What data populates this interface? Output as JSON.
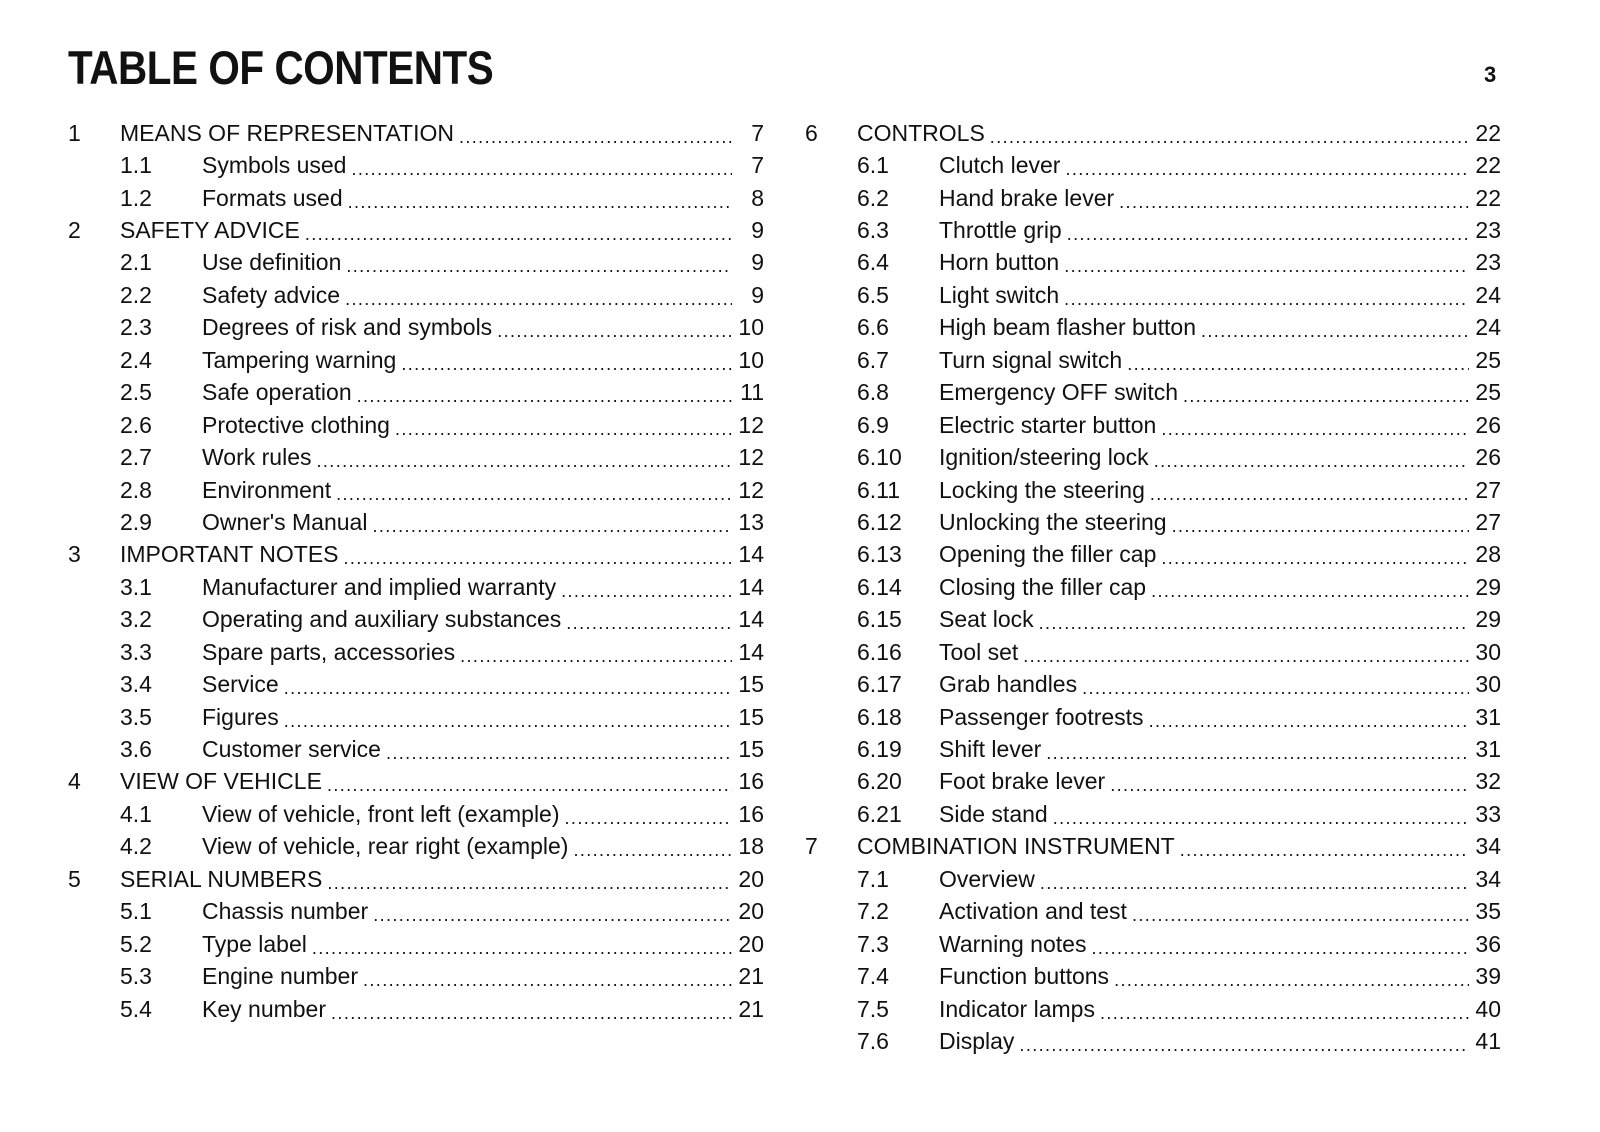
{
  "header": {
    "title": "TABLE OF CONTENTS",
    "page_number": "3"
  },
  "columns": [
    [
      {
        "num": "1",
        "label": "MEANS OF REPRESENTATION",
        "page": "7",
        "level": 1
      },
      {
        "num": "1.1",
        "label": "Symbols used",
        "page": "7",
        "level": 2
      },
      {
        "num": "1.2",
        "label": "Formats used",
        "page": "8",
        "level": 2
      },
      {
        "num": "2",
        "label": "SAFETY ADVICE",
        "page": "9",
        "level": 1
      },
      {
        "num": "2.1",
        "label": "Use definition",
        "page": "9",
        "level": 2
      },
      {
        "num": "2.2",
        "label": "Safety advice",
        "page": "9",
        "level": 2
      },
      {
        "num": "2.3",
        "label": "Degrees of risk and symbols",
        "page": "10",
        "level": 2
      },
      {
        "num": "2.4",
        "label": "Tampering warning",
        "page": "10",
        "level": 2
      },
      {
        "num": "2.5",
        "label": "Safe operation",
        "page": "11",
        "level": 2
      },
      {
        "num": "2.6",
        "label": "Protective clothing",
        "page": "12",
        "level": 2
      },
      {
        "num": "2.7",
        "label": "Work rules",
        "page": "12",
        "level": 2
      },
      {
        "num": "2.8",
        "label": "Environment",
        "page": "12",
        "level": 2
      },
      {
        "num": "2.9",
        "label": "Owner's Manual",
        "page": "13",
        "level": 2
      },
      {
        "num": "3",
        "label": "IMPORTANT NOTES",
        "page": "14",
        "level": 1
      },
      {
        "num": "3.1",
        "label": "Manufacturer and implied warranty",
        "page": "14",
        "level": 2
      },
      {
        "num": "3.2",
        "label": "Operating and auxiliary substances",
        "page": "14",
        "level": 2
      },
      {
        "num": "3.3",
        "label": "Spare parts, accessories",
        "page": "14",
        "level": 2
      },
      {
        "num": "3.4",
        "label": "Service",
        "page": "15",
        "level": 2
      },
      {
        "num": "3.5",
        "label": "Figures",
        "page": "15",
        "level": 2
      },
      {
        "num": "3.6",
        "label": "Customer service",
        "page": "15",
        "level": 2
      },
      {
        "num": "4",
        "label": "VIEW OF VEHICLE",
        "page": "16",
        "level": 1
      },
      {
        "num": "4.1",
        "label": "View of vehicle, front left (example)",
        "page": "16",
        "level": 2
      },
      {
        "num": "4.2",
        "label": "View of vehicle, rear right (example)",
        "page": "18",
        "level": 2
      },
      {
        "num": "5",
        "label": "SERIAL NUMBERS",
        "page": "20",
        "level": 1
      },
      {
        "num": "5.1",
        "label": "Chassis number",
        "page": "20",
        "level": 2
      },
      {
        "num": "5.2",
        "label": "Type label",
        "page": "20",
        "level": 2
      },
      {
        "num": "5.3",
        "label": "Engine number",
        "page": "21",
        "level": 2
      },
      {
        "num": "5.4",
        "label": "Key number",
        "page": "21",
        "level": 2
      }
    ],
    [
      {
        "num": "6",
        "label": "CONTROLS",
        "page": "22",
        "level": 1
      },
      {
        "num": "6.1",
        "label": "Clutch lever",
        "page": "22",
        "level": 2
      },
      {
        "num": "6.2",
        "label": "Hand brake lever",
        "page": "22",
        "level": 2
      },
      {
        "num": "6.3",
        "label": "Throttle grip",
        "page": "23",
        "level": 2
      },
      {
        "num": "6.4",
        "label": "Horn button",
        "page": "23",
        "level": 2
      },
      {
        "num": "6.5",
        "label": "Light switch",
        "page": "24",
        "level": 2
      },
      {
        "num": "6.6",
        "label": "High beam flasher button",
        "page": "24",
        "level": 2
      },
      {
        "num": "6.7",
        "label": "Turn signal switch",
        "page": "25",
        "level": 2
      },
      {
        "num": "6.8",
        "label": "Emergency OFF switch",
        "page": "25",
        "level": 2
      },
      {
        "num": "6.9",
        "label": "Electric starter button",
        "page": "26",
        "level": 2
      },
      {
        "num": "6.10",
        "label": "Ignition/steering lock",
        "page": "26",
        "level": 2
      },
      {
        "num": "6.11",
        "label": "Locking the steering",
        "page": "27",
        "level": 2
      },
      {
        "num": "6.12",
        "label": "Unlocking the steering",
        "page": "27",
        "level": 2
      },
      {
        "num": "6.13",
        "label": "Opening the filler cap",
        "page": "28",
        "level": 2
      },
      {
        "num": "6.14",
        "label": "Closing the filler cap",
        "page": "29",
        "level": 2
      },
      {
        "num": "6.15",
        "label": "Seat lock",
        "page": "29",
        "level": 2
      },
      {
        "num": "6.16",
        "label": "Tool set",
        "page": "30",
        "level": 2
      },
      {
        "num": "6.17",
        "label": "Grab handles",
        "page": "30",
        "level": 2
      },
      {
        "num": "6.18",
        "label": "Passenger footrests",
        "page": "31",
        "level": 2
      },
      {
        "num": "6.19",
        "label": "Shift lever",
        "page": "31",
        "level": 2
      },
      {
        "num": "6.20",
        "label": "Foot brake lever",
        "page": "32",
        "level": 2
      },
      {
        "num": "6.21",
        "label": "Side stand",
        "page": "33",
        "level": 2
      },
      {
        "num": "7",
        "label": "COMBINATION INSTRUMENT",
        "page": "34",
        "level": 1
      },
      {
        "num": "7.1",
        "label": "Overview",
        "page": "34",
        "level": 2
      },
      {
        "num": "7.2",
        "label": "Activation and test",
        "page": "35",
        "level": 2
      },
      {
        "num": "7.3",
        "label": "Warning notes",
        "page": "36",
        "level": 2
      },
      {
        "num": "7.4",
        "label": "Function buttons",
        "page": "39",
        "level": 2
      },
      {
        "num": "7.5",
        "label": "Indicator lamps",
        "page": "40",
        "level": 2
      },
      {
        "num": "7.6",
        "label": "Display",
        "page": "41",
        "level": 2
      }
    ]
  ]
}
